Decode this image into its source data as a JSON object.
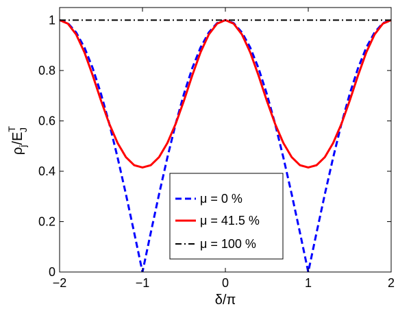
{
  "chart_data": {
    "type": "line",
    "xlabel": "δ/π",
    "ylabel": {
      "base": "ρ",
      "sub": "j",
      "rest": "/E",
      "sup": "T",
      "sub2": "J"
    },
    "xlim": [
      -2,
      2
    ],
    "ylim": [
      0,
      1.05
    ],
    "xticks": [
      -2,
      -1,
      0,
      1,
      2
    ],
    "xtick_labels": [
      "−2",
      "−1",
      "0",
      "1",
      "2"
    ],
    "yticks": [
      0,
      0.2,
      0.4,
      0.6,
      0.8,
      1
    ],
    "ytick_labels": [
      "0",
      "0.2",
      "0.4",
      "0.6",
      "0.8",
      "1"
    ],
    "grid": false,
    "legend_position": "lower-center",
    "series": [
      {
        "name": "μ = 0 %",
        "color": "#0000ff",
        "style": "dashed",
        "x": [
          -2,
          -1.9,
          -1.8,
          -1.7,
          -1.6,
          -1.5,
          -1.4,
          -1.3,
          -1.2,
          -1.1,
          -1.0,
          -0.9,
          -0.8,
          -0.7,
          -0.6,
          -0.5,
          -0.4,
          -0.3,
          -0.2,
          -0.1,
          0,
          0.1,
          0.2,
          0.3,
          0.4,
          0.5,
          0.6,
          0.7,
          0.8,
          0.9,
          1.0,
          1.1,
          1.2,
          1.3,
          1.4,
          1.5,
          1.6,
          1.7,
          1.8,
          1.9,
          2
        ],
        "y": [
          1,
          0.988,
          0.951,
          0.891,
          0.809,
          0.707,
          0.588,
          0.454,
          0.309,
          0.156,
          0,
          0.156,
          0.309,
          0.454,
          0.588,
          0.707,
          0.809,
          0.891,
          0.951,
          0.988,
          1,
          0.988,
          0.951,
          0.891,
          0.809,
          0.707,
          0.588,
          0.454,
          0.309,
          0.156,
          0,
          0.156,
          0.309,
          0.454,
          0.588,
          0.707,
          0.809,
          0.891,
          0.951,
          0.988,
          1
        ]
      },
      {
        "name": "μ = 41.5 %",
        "color": "#ff0000",
        "style": "solid",
        "x": [
          -2,
          -1.9,
          -1.8,
          -1.7,
          -1.6,
          -1.5,
          -1.4,
          -1.3,
          -1.2,
          -1.1,
          -1.0,
          -0.9,
          -0.8,
          -0.7,
          -0.6,
          -0.5,
          -0.4,
          -0.3,
          -0.2,
          -0.1,
          0,
          0.1,
          0.2,
          0.3,
          0.4,
          0.5,
          0.6,
          0.7,
          0.8,
          0.9,
          1.0,
          1.1,
          1.2,
          1.3,
          1.4,
          1.5,
          1.6,
          1.7,
          1.8,
          1.9,
          2
        ],
        "y": [
          1,
          0.986,
          0.943,
          0.872,
          0.78,
          0.68,
          0.588,
          0.512,
          0.456,
          0.424,
          0.415,
          0.424,
          0.456,
          0.512,
          0.588,
          0.68,
          0.78,
          0.872,
          0.943,
          0.986,
          1,
          0.986,
          0.943,
          0.872,
          0.78,
          0.68,
          0.588,
          0.512,
          0.456,
          0.424,
          0.415,
          0.424,
          0.456,
          0.512,
          0.588,
          0.68,
          0.78,
          0.872,
          0.943,
          0.986,
          1
        ]
      },
      {
        "name": "μ = 100 %",
        "color": "#000000",
        "style": "dashdot",
        "x": [
          -2,
          2
        ],
        "y": [
          1,
          1
        ]
      }
    ]
  }
}
